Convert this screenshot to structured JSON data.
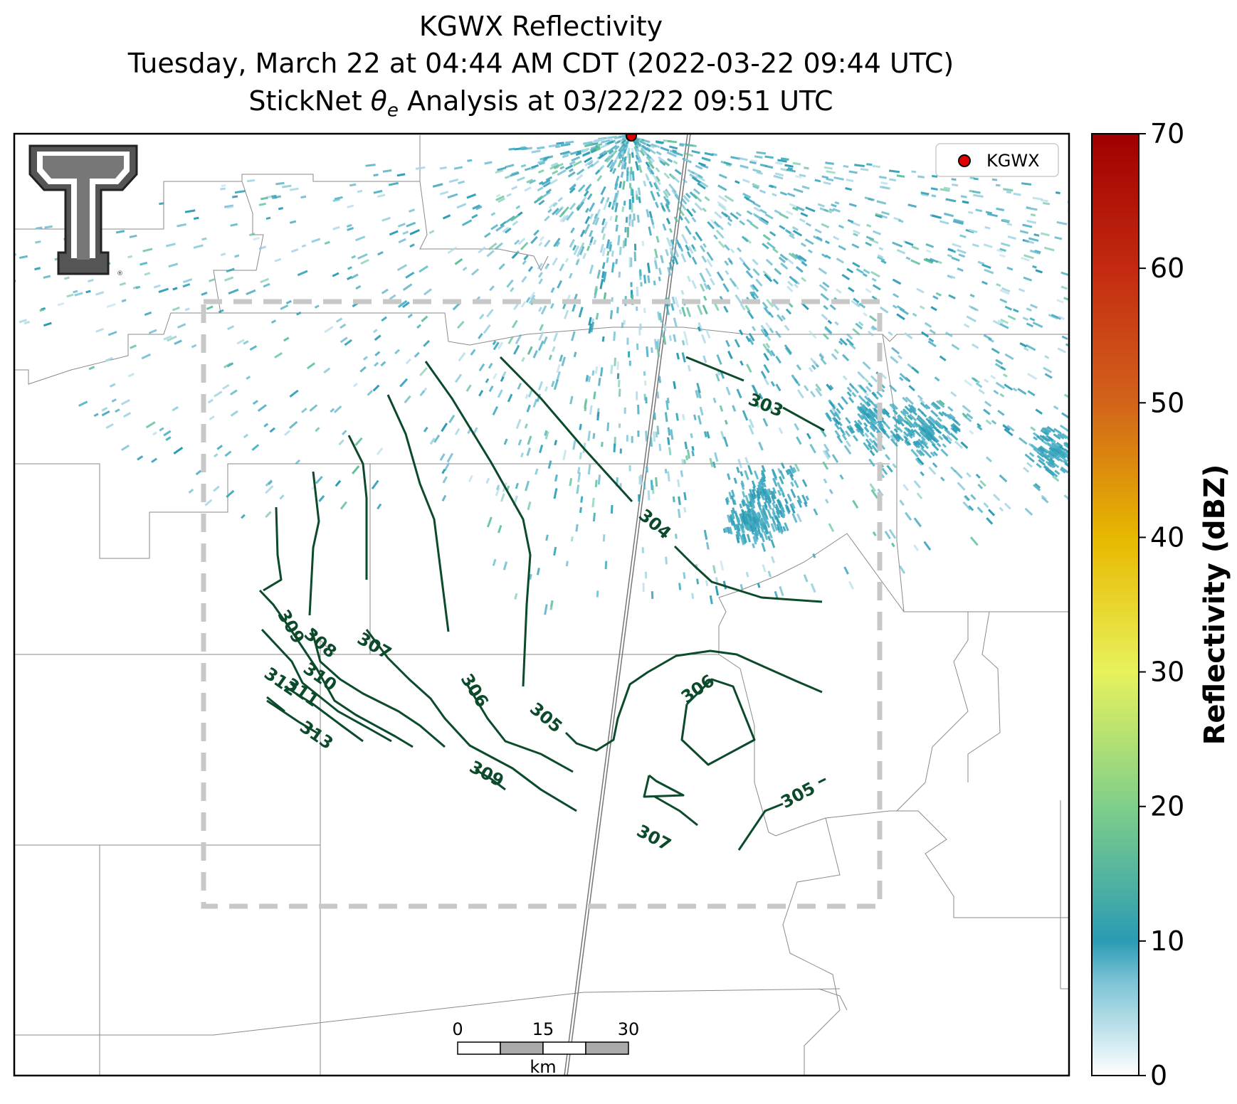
{
  "title": {
    "line1": "KGWX Reflectivity",
    "line2": "Tuesday, March 22 at 04:44 AM CDT (2022-03-22 09:44 UTC)",
    "line3_pre": "StickNet ",
    "line3_symbol": "θ",
    "line3_sub": "e",
    "line3_post": " Analysis at 03/22/22 09:51 UTC"
  },
  "legend": {
    "label": "KGWX",
    "marker_color": "#e00000"
  },
  "logo": {
    "text": "T",
    "mark": "®"
  },
  "scalebar": {
    "ticks": [
      "0",
      "15",
      "30"
    ],
    "unit": "km"
  },
  "colorbar": {
    "label": "Reflectivity (dBZ)",
    "ticks": [
      "0",
      "10",
      "20",
      "30",
      "40",
      "50",
      "60",
      "70"
    ],
    "colors": [
      "#ffffff",
      "#2a9bb3",
      "#7fcf8a",
      "#e8f25c",
      "#e7b800",
      "#d2641a",
      "#b01010",
      "#a00000"
    ]
  },
  "contours": {
    "color": "#0b4a2a",
    "labels": [
      "303",
      "304",
      "305",
      "306",
      "307",
      "308",
      "309",
      "310",
      "311",
      "312",
      "313",
      "306",
      "305",
      "307",
      "305",
      "309"
    ]
  },
  "analysis_box_color": "#c8c8c8"
}
